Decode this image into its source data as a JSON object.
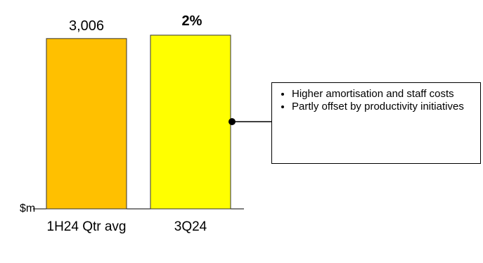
{
  "chart_data": {
    "type": "bar",
    "unit_label": "$m",
    "categories": [
      "1H24 Qtr avg",
      "3Q24"
    ],
    "values": [
      3006,
      3066
    ],
    "value_labels": [
      "3,006",
      null
    ],
    "colors": [
      "#FFC000",
      "#FFFF00"
    ],
    "annotation": "2%",
    "callout": {
      "bullets": [
        "Higher amortisation and staff costs",
        "Partly offset by productivity initiatives"
      ]
    }
  }
}
